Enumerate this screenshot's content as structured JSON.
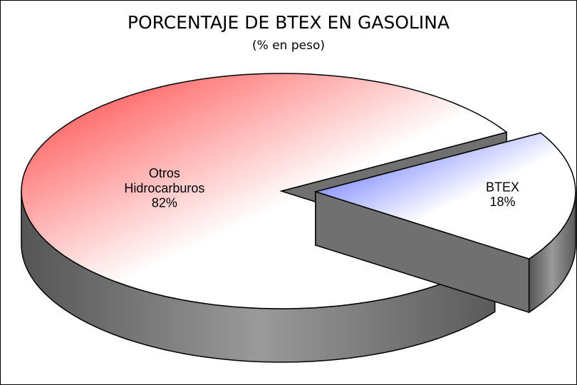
{
  "chart_data": {
    "type": "pie",
    "title": "PORCENTAJE DE BTEX EN GASOLINA",
    "subtitle": "(% en peso)",
    "categories": [
      "Otros Hidrocarburos",
      "BTEX"
    ],
    "values": [
      82,
      18
    ],
    "value_labels": [
      "82%",
      "18%"
    ],
    "colors": [
      "#ff3b3b",
      "#4050ff"
    ]
  }
}
